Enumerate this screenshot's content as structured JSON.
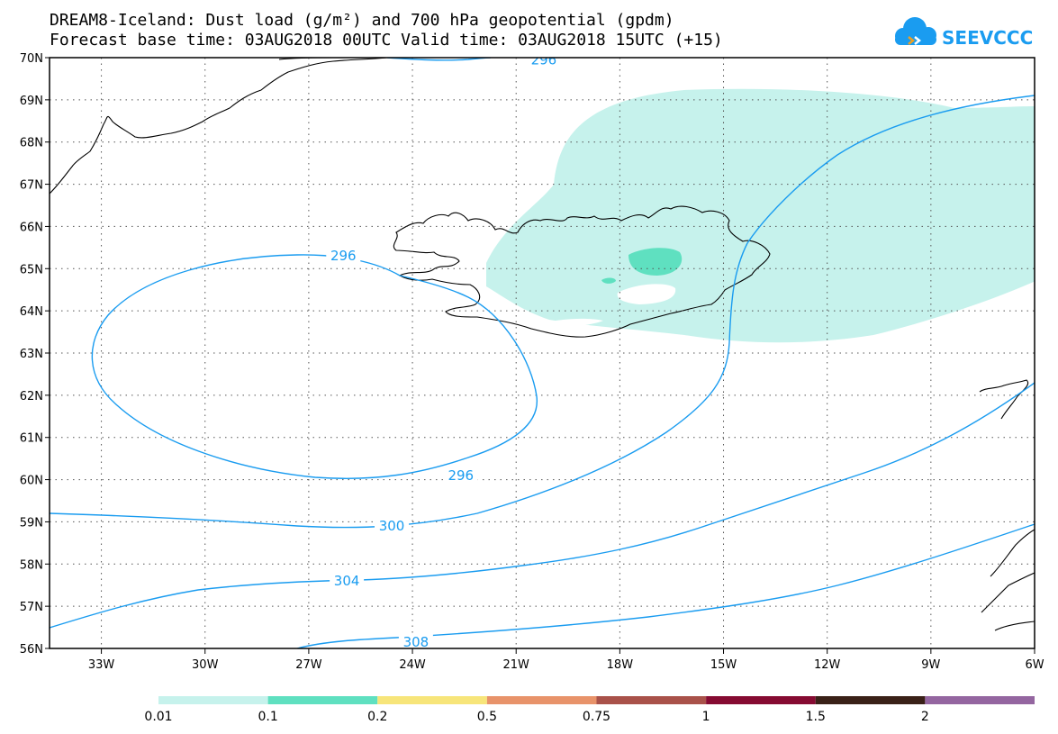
{
  "title": {
    "line1": "DREAM8-Iceland: Dust load (g/m²) and 700 hPa geopotential (gpdm)",
    "line2": "Forecast base time: 03AUG2018 00UTC   Valid time: 03AUG2018 15UTC (+15)"
  },
  "logo": {
    "text": "SEEVCCC",
    "icon": "cloud-icon",
    "color": "#1a9cf0"
  },
  "map": {
    "lon_range": [
      -34.5,
      -6
    ],
    "lat_range": [
      56,
      70
    ],
    "lon_ticks": [
      {
        "value": -33,
        "label": "33W"
      },
      {
        "value": -30,
        "label": "30W"
      },
      {
        "value": -27,
        "label": "27W"
      },
      {
        "value": -24,
        "label": "24W"
      },
      {
        "value": -21,
        "label": "21W"
      },
      {
        "value": -18,
        "label": "18W"
      },
      {
        "value": -15,
        "label": "15W"
      },
      {
        "value": -12,
        "label": "12W"
      },
      {
        "value": -9,
        "label": "9W"
      },
      {
        "value": -6,
        "label": "6W"
      }
    ],
    "lat_ticks": [
      {
        "value": 70,
        "label": "70N"
      },
      {
        "value": 69,
        "label": "69N"
      },
      {
        "value": 68,
        "label": "68N"
      },
      {
        "value": 67,
        "label": "67N"
      },
      {
        "value": 66,
        "label": "66N"
      },
      {
        "value": 65,
        "label": "65N"
      },
      {
        "value": 64,
        "label": "64N"
      },
      {
        "value": 63,
        "label": "63N"
      },
      {
        "value": 62,
        "label": "62N"
      },
      {
        "value": 61,
        "label": "61N"
      },
      {
        "value": 60,
        "label": "60N"
      },
      {
        "value": 59,
        "label": "59N"
      },
      {
        "value": 58,
        "label": "58N"
      },
      {
        "value": 57,
        "label": "57N"
      },
      {
        "value": 56,
        "label": "56N"
      }
    ],
    "contour_color": "#1a9cf0",
    "contours": [
      {
        "level": "296",
        "labels": [
          {
            "lon": -26.0,
            "lat": 65.3
          },
          {
            "lon": -22.6,
            "lat": 60.1
          },
          {
            "lon": -20.2,
            "lat": 69.95
          }
        ]
      },
      {
        "level": "300",
        "labels": [
          {
            "lon": -24.6,
            "lat": 58.9
          }
        ]
      },
      {
        "level": "304",
        "labels": [
          {
            "lon": -25.9,
            "lat": 57.6
          }
        ]
      },
      {
        "level": "308",
        "labels": [
          {
            "lon": -23.9,
            "lat": 56.15
          }
        ]
      }
    ],
    "dust_colors": {
      "low": "#c6f2ec",
      "mid": "#5fe0c0"
    }
  },
  "legend": {
    "colors": [
      "#c6f2ec",
      "#5fe0c0",
      "#f7e57a",
      "#e8936a",
      "#a9524a",
      "#860b32",
      "#3a2118",
      "#9466a0"
    ],
    "labels": [
      "0.01",
      "0.1",
      "0.2",
      "0.5",
      "0.75",
      "1",
      "1.5",
      "2"
    ]
  }
}
